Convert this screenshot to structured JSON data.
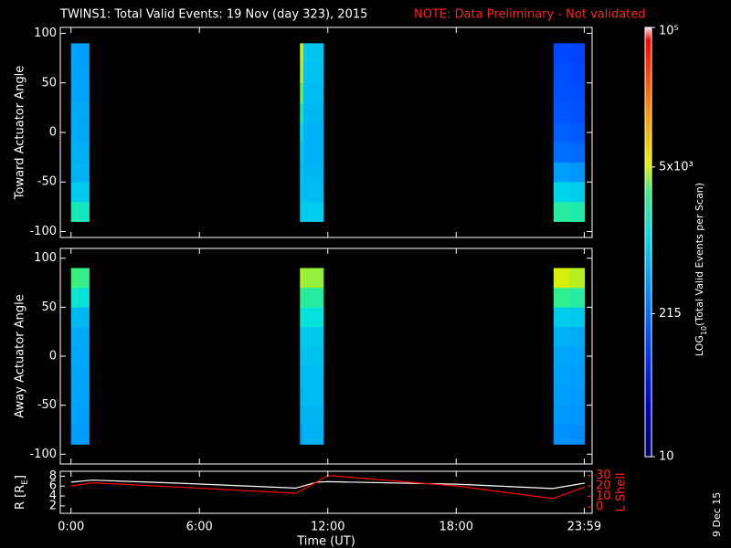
{
  "title": "TWINS1: Total Valid Events: 19 Nov (day 323), 2015",
  "note": "NOTE: Data Preliminary - Not validated",
  "footer": "9 Dec 15",
  "colorbar": {
    "label": [
      "LOG",
      "10",
      "(Total Valid Events per Scan)"
    ],
    "scale": "log",
    "lim": [
      10,
      100000
    ],
    "ticks": [
      10,
      215,
      {
        "value": 5000,
        "label": "5x10³"
      },
      {
        "value": 100000,
        "label": "10⁵"
      }
    ]
  },
  "chart_data": [
    {
      "type": "heatmap",
      "ylabel": "Toward Actuator Angle",
      "ylim": [
        -106,
        106
      ],
      "yticks": [
        -100,
        -50,
        0,
        50,
        100
      ],
      "y_bins": [
        -90,
        -70,
        -50,
        -30,
        -10,
        10,
        30,
        50,
        70,
        90
      ],
      "blocks": [
        {
          "x_bins": [
            0,
            0.4,
            0.85
          ],
          "values": [
            [
              1800,
              900,
              650,
              600,
              550,
              550,
              500,
              500,
              480
            ],
            [
              1600,
              850,
              600,
              560,
              520,
              520,
              480,
              470,
              450
            ]
          ]
        },
        {
          "x_bins": [
            10.7,
            10.85,
            11.8
          ],
          "values": [
            [
              900,
              800,
              800,
              900,
              1200,
              2000,
              3500,
              4500,
              5000
            ],
            [
              900,
              700,
              650,
              600,
              600,
              650,
              700,
              750,
              800
            ]
          ]
        },
        {
          "x_bins": [
            22.55,
            23.3,
            24.0
          ],
          "values": [
            [
              2200,
              1000,
              450,
              220,
              170,
              150,
              140,
              130,
              120
            ],
            [
              2000,
              900,
              400,
              200,
              160,
              140,
              130,
              120,
              110
            ]
          ]
        }
      ]
    },
    {
      "type": "heatmap",
      "ylabel": "Away Actuator Angle",
      "ylim": [
        -110,
        110
      ],
      "yticks": [
        -100,
        -50,
        0,
        50,
        100
      ],
      "y_bins": [
        -90,
        -70,
        -50,
        -30,
        -10,
        10,
        30,
        50,
        70,
        90
      ],
      "blocks": [
        {
          "x_bins": [
            0,
            0.4,
            0.85
          ],
          "values": [
            [
              450,
              480,
              500,
              500,
              520,
              550,
              700,
              1500,
              3000
            ],
            [
              420,
              450,
              480,
              480,
              500,
              520,
              650,
              1300,
              2600
            ]
          ]
        },
        {
          "x_bins": [
            10.7,
            10.85,
            11.8
          ],
          "values": [
            [
              500,
              600,
              650,
              700,
              750,
              900,
              1500,
              2500,
              4500
            ],
            [
              600,
              650,
              700,
              700,
              750,
              850,
              1300,
              2200,
              4000
            ]
          ]
        },
        {
          "x_bins": [
            22.55,
            23.3,
            24.0
          ],
          "values": [
            [
              380,
              420,
              450,
              480,
              500,
              600,
              900,
              2500,
              5000
            ],
            [
              350,
              400,
              420,
              450,
              480,
              550,
              850,
              2200,
              4500
            ]
          ]
        }
      ]
    },
    {
      "type": "line",
      "xlabel": "Time (UT)",
      "ylabel": [
        "R [R",
        "E",
        "]"
      ],
      "y2label": "L Shell",
      "x": [
        0,
        1,
        5,
        10.5,
        11.5,
        12,
        18,
        22.5,
        24
      ],
      "xlim": [
        -0.5,
        24.35
      ],
      "xticks": [
        {
          "value": 0,
          "label": "0:00"
        },
        {
          "value": 6,
          "label": "6:00"
        },
        {
          "value": 12,
          "label": "12:00"
        },
        {
          "value": 18,
          "label": "18:00"
        },
        {
          "value": 23.983,
          "label": "23:59"
        }
      ],
      "ylim": [
        0.5,
        9
      ],
      "yticks": [
        2,
        4,
        6,
        8
      ],
      "y2lim": [
        -6,
        34
      ],
      "y2ticks": [
        0,
        10,
        20,
        30
      ],
      "series": [
        {
          "color": "#ffffff",
          "values": [
            6.8,
            7.2,
            6.6,
            5.6,
            6.8,
            6.9,
            6.4,
            5.5,
            6.6
          ]
        },
        {
          "color": "#ff0000",
          "axis": "y2",
          "values": [
            20,
            23,
            19,
            13,
            24,
            30,
            20,
            8,
            19
          ]
        }
      ]
    }
  ]
}
